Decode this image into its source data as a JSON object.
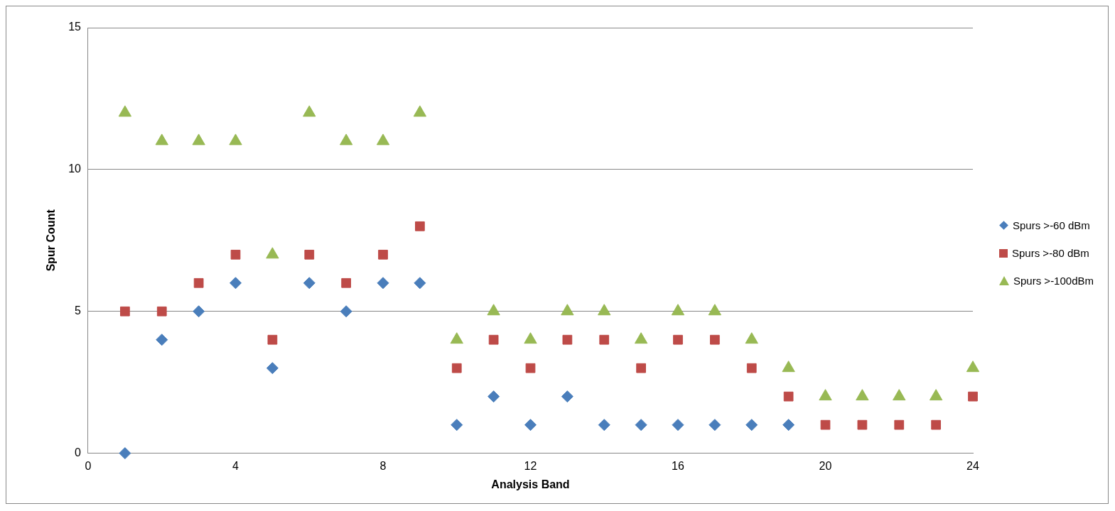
{
  "chart_data": {
    "type": "scatter",
    "xlabel": "Analysis Band",
    "ylabel": "Spur Count",
    "x": [
      1,
      2,
      3,
      4,
      5,
      6,
      7,
      8,
      9,
      10,
      11,
      12,
      13,
      14,
      15,
      16,
      17,
      18,
      19,
      20,
      21,
      22,
      23,
      24
    ],
    "series": [
      {
        "name": "Spurs >-60 dBm",
        "color": "#4a7ebb",
        "marker": "diamond",
        "values": [
          0,
          4,
          5,
          6,
          3,
          6,
          5,
          6,
          6,
          1,
          2,
          1,
          2,
          1,
          1,
          1,
          1,
          1,
          1,
          null,
          null,
          null,
          null,
          null
        ]
      },
      {
        "name": "Spurs >-80 dBm",
        "color": "#be4b48",
        "marker": "square",
        "values": [
          5,
          5,
          6,
          7,
          4,
          7,
          6,
          7,
          8,
          3,
          4,
          3,
          4,
          4,
          3,
          4,
          4,
          3,
          2,
          1,
          1,
          1,
          1,
          2
        ]
      },
      {
        "name": "Spurs >-100dBm",
        "color": "#98b954",
        "marker": "triangle",
        "values": [
          12,
          11,
          11,
          11,
          7,
          12,
          11,
          11,
          12,
          4,
          5,
          4,
          5,
          5,
          4,
          5,
          5,
          4,
          3,
          2,
          2,
          2,
          2,
          3
        ]
      }
    ],
    "xlim": [
      0,
      24
    ],
    "xticks": [
      0,
      4,
      8,
      12,
      16,
      20,
      24
    ],
    "ylim": [
      0,
      15
    ],
    "yticks": [
      0,
      5,
      10,
      15
    ],
    "grid": "y",
    "legend": "right"
  }
}
